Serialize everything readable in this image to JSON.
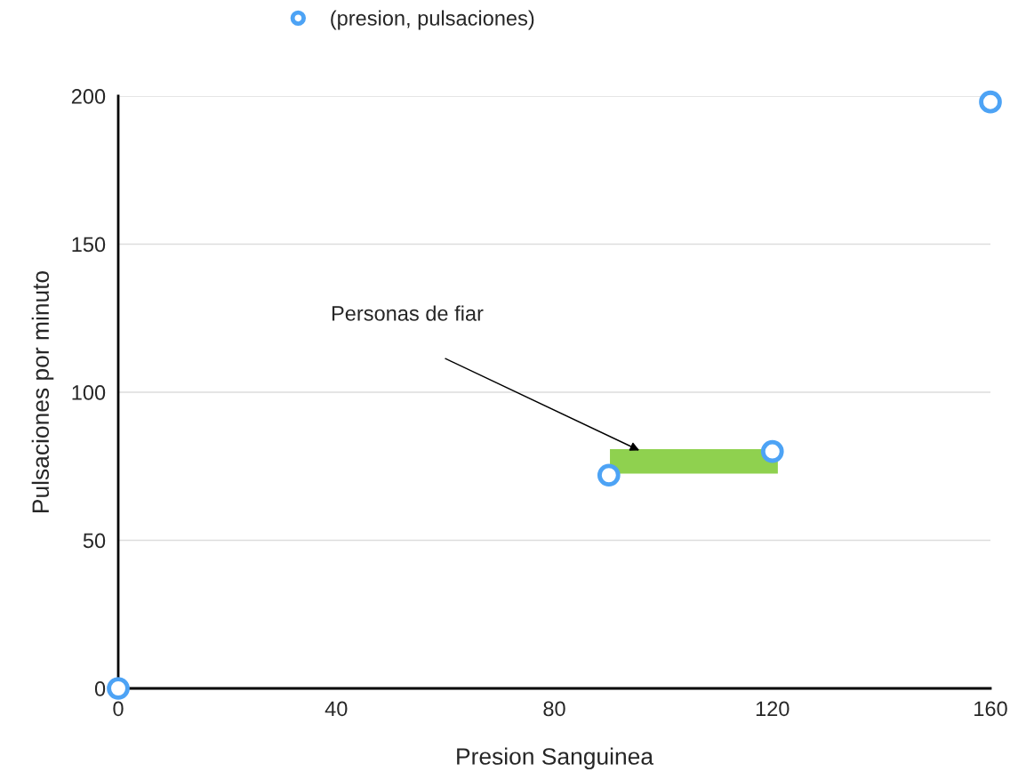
{
  "chart_data": {
    "type": "scatter",
    "xlabel": "Presion Sanguinea",
    "ylabel": "Pulsaciones por minuto",
    "xlim": [
      0,
      160
    ],
    "xticks": [
      0,
      40,
      80,
      120,
      160
    ],
    "ylim": [
      0,
      200
    ],
    "yticks": [
      0,
      50,
      100,
      150,
      200
    ],
    "grid": "y",
    "legend": "top",
    "marker": "circle",
    "series": [
      {
        "name": "(presion, pulsaciones)",
        "color": "#4da3f5",
        "x": [
          0,
          90,
          120,
          160
        ],
        "values": [
          0,
          72,
          80,
          198
        ]
      }
    ],
    "annotations": [
      "Personas de fiar"
    ]
  }
}
